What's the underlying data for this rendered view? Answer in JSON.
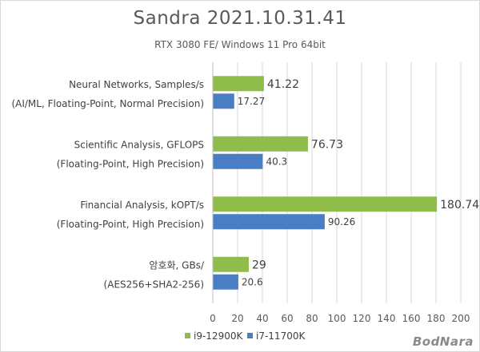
{
  "chart_data": {
    "type": "bar",
    "orientation": "horizontal",
    "title": "Sandra 2021.10.31.41",
    "subtitle": "RTX 3080 FE/ Windows 11 Pro 64bit",
    "categories": [
      [
        "Neural Networks, Samples/s",
        "(AI/ML, Floating-Point, Normal Precision)"
      ],
      [
        "Scientific Analysis, GFLOPS",
        "(Floating-Point, High Precision)"
      ],
      [
        "Financial Analysis, kOPT/s",
        "(Floating-Point, High Precision)"
      ],
      [
        "암호화, GBs/",
        "(AES256+SHA2-256)"
      ]
    ],
    "series": [
      {
        "name": "i9-12900K",
        "color": "#8fbc4a",
        "values": [
          41.22,
          76.73,
          180.74,
          29
        ],
        "labels": [
          "41.22",
          "76.73",
          "180.74",
          "29"
        ]
      },
      {
        "name": "i7-11700K",
        "color": "#4a7ec4",
        "values": [
          17.27,
          40.3,
          90.26,
          20.6
        ],
        "labels": [
          "17.27",
          "40.3",
          "90.26",
          "20.6"
        ]
      }
    ],
    "xlim": [
      0,
      200
    ],
    "ticks": [
      0,
      20,
      40,
      60,
      80,
      100,
      120,
      140,
      160,
      180,
      200
    ],
    "grid": true,
    "legend_position": "bottom"
  },
  "watermark": "BodNara"
}
